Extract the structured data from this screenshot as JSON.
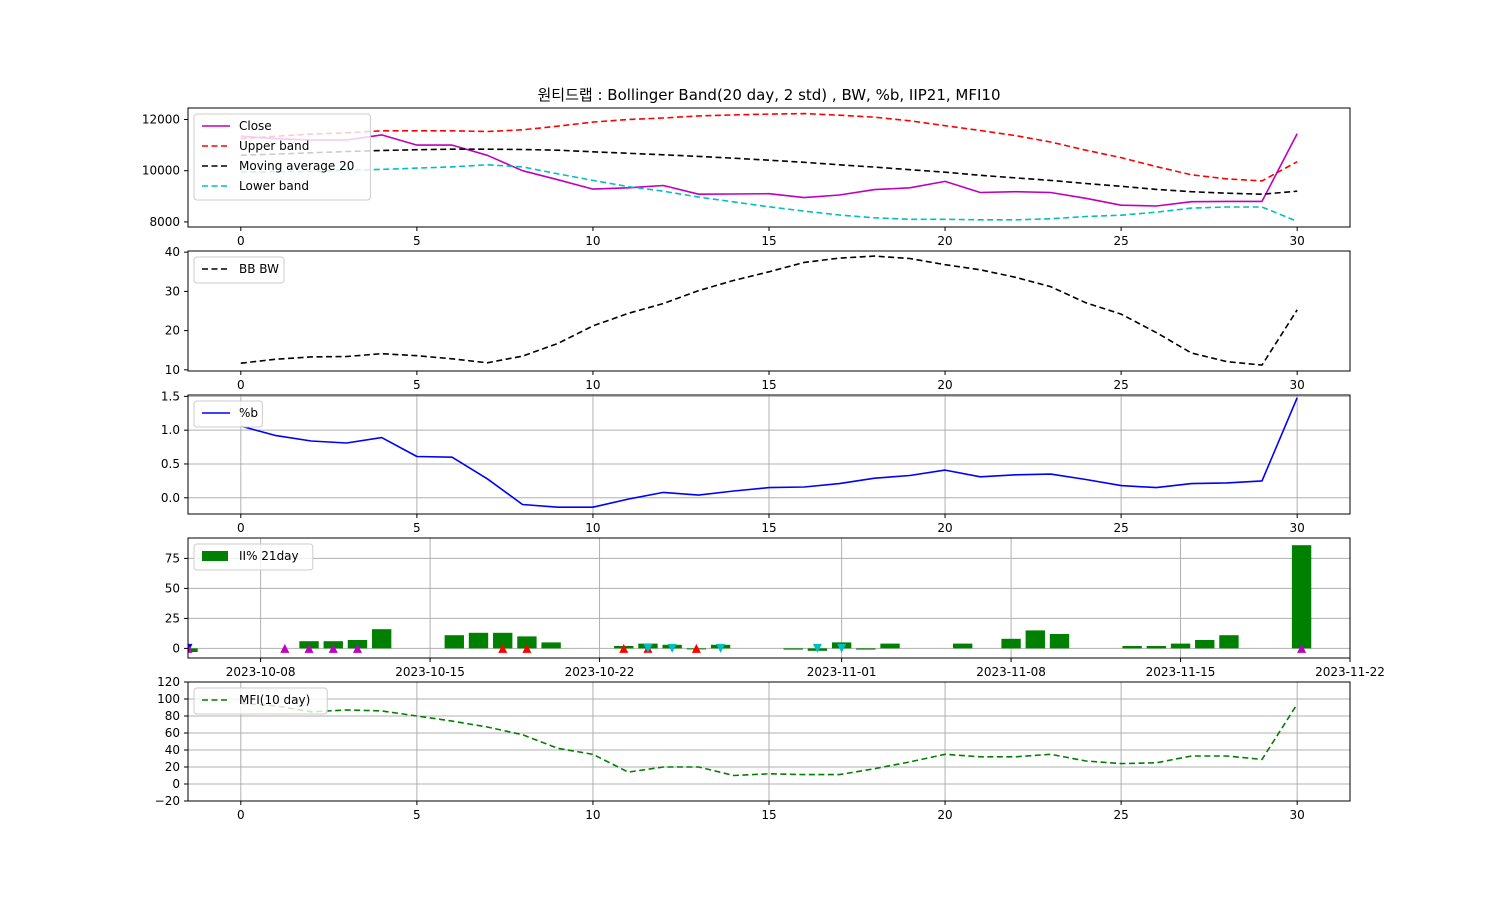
{
  "title": "원티드랩 : Bollinger Band(20 day, 2 std) , BW, %b, IIP21, MFI10",
  "chart_data": [
    {
      "type": "line",
      "x": [
        0,
        1,
        2,
        3,
        4,
        5,
        6,
        7,
        8,
        9,
        10,
        11,
        12,
        13,
        14,
        15,
        16,
        17,
        18,
        19,
        20,
        21,
        22,
        23,
        24,
        25,
        26,
        27,
        28,
        29,
        30
      ],
      "xlim": [
        -1.5,
        31.5
      ],
      "xticks": [
        0,
        5,
        10,
        15,
        20,
        25,
        30
      ],
      "ylim": [
        7800,
        12450
      ],
      "yticks": [
        8000,
        10000,
        12000
      ],
      "grid": false,
      "legend_position": "top-left",
      "series": [
        {
          "name": "Close",
          "color": "#bf00bf",
          "dash": "solid",
          "values": [
            11350,
            11250,
            11200,
            11200,
            11400,
            11000,
            11000,
            10600,
            10000,
            9650,
            9280,
            9330,
            9420,
            9080,
            9090,
            9100,
            8950,
            9050,
            9260,
            9330,
            9580,
            9150,
            9180,
            9150,
            8920,
            8650,
            8620,
            8790,
            8800,
            8800,
            11450
          ]
        },
        {
          "name": "Upper band",
          "color": "#ff0000",
          "dash": "dashed",
          "values": [
            11250,
            11350,
            11430,
            11480,
            11560,
            11560,
            11560,
            11530,
            11600,
            11740,
            11900,
            12000,
            12060,
            12140,
            12180,
            12210,
            12230,
            12170,
            12090,
            11950,
            11760,
            11570,
            11370,
            11120,
            10800,
            10510,
            10160,
            9840,
            9680,
            9600,
            10350
          ]
        },
        {
          "name": "Moving average 20",
          "color": "#000000",
          "dash": "dashed",
          "values": [
            10600,
            10650,
            10700,
            10750,
            10790,
            10820,
            10840,
            10840,
            10830,
            10800,
            10740,
            10680,
            10620,
            10560,
            10490,
            10410,
            10330,
            10230,
            10140,
            10040,
            9940,
            9820,
            9720,
            9620,
            9500,
            9390,
            9270,
            9180,
            9120,
            9080,
            9200
          ]
        },
        {
          "name": "Lower band",
          "color": "#00bfbf",
          "dash": "dashed",
          "values": [
            9950,
            9960,
            9970,
            10020,
            10050,
            10100,
            10150,
            10230,
            10150,
            9880,
            9620,
            9380,
            9200,
            8970,
            8780,
            8590,
            8420,
            8270,
            8160,
            8100,
            8100,
            8080,
            8080,
            8120,
            8210,
            8260,
            8380,
            8540,
            8580,
            8580,
            8020
          ]
        }
      ]
    },
    {
      "type": "line",
      "x": [
        0,
        1,
        2,
        3,
        4,
        5,
        6,
        7,
        8,
        9,
        10,
        11,
        12,
        13,
        14,
        15,
        16,
        17,
        18,
        19,
        20,
        21,
        22,
        23,
        24,
        25,
        26,
        27,
        28,
        29,
        30
      ],
      "xlim": [
        -1.5,
        31.5
      ],
      "xticks": [
        0,
        5,
        10,
        15,
        20,
        25,
        30
      ],
      "ylim": [
        9.7,
        40.3
      ],
      "yticks": [
        10,
        20,
        30,
        40
      ],
      "grid": false,
      "legend_position": "top-left",
      "series": [
        {
          "name": "BB BW",
          "color": "#000000",
          "dash": "dashed",
          "values": [
            11.7,
            12.7,
            13.3,
            13.4,
            14.1,
            13.6,
            12.8,
            11.8,
            13.5,
            16.7,
            21.2,
            24.4,
            26.9,
            30.2,
            32.8,
            35.0,
            37.4,
            38.5,
            39.0,
            38.4,
            36.8,
            35.5,
            33.6,
            31.2,
            27.1,
            24.2,
            19.5,
            14.3,
            12.1,
            11.2,
            25.3
          ]
        }
      ]
    },
    {
      "type": "line",
      "x": [
        0,
        1,
        2,
        3,
        4,
        5,
        6,
        7,
        8,
        9,
        10,
        11,
        12,
        13,
        14,
        15,
        16,
        17,
        18,
        19,
        20,
        21,
        22,
        23,
        24,
        25,
        26,
        27,
        28,
        29,
        30
      ],
      "xlim": [
        -1.5,
        31.5
      ],
      "xticks": [
        0,
        5,
        10,
        15,
        20,
        25,
        30
      ],
      "ylim": [
        -0.24,
        1.52
      ],
      "yticks": [
        0.0,
        0.5,
        1.0,
        1.5
      ],
      "ytick_labels": [
        "0.0",
        "0.5",
        "1.0",
        "1.5"
      ],
      "grid": true,
      "legend_position": "top-left",
      "series": [
        {
          "name": "%b",
          "color": "#0000ff",
          "dash": "solid",
          "values": [
            1.06,
            0.92,
            0.84,
            0.81,
            0.89,
            0.61,
            0.6,
            0.28,
            -0.1,
            -0.14,
            -0.14,
            -0.02,
            0.08,
            0.04,
            0.1,
            0.15,
            0.16,
            0.21,
            0.29,
            0.33,
            0.41,
            0.31,
            0.34,
            0.35,
            0.27,
            0.18,
            0.15,
            0.21,
            0.22,
            0.25,
            1.48
          ]
        }
      ]
    },
    {
      "type": "bar",
      "x_type": "date",
      "xlim": [
        "2023-10-05",
        "2023-11-22"
      ],
      "xticks": [
        "2023-10-08",
        "2023-10-15",
        "2023-10-22",
        "2023-11-01",
        "2023-11-08",
        "2023-11-15",
        "2023-11-22"
      ],
      "ylim": [
        -8,
        92
      ],
      "yticks": [
        0,
        25,
        50,
        75
      ],
      "grid": true,
      "legend_position": "top-left",
      "series": [
        {
          "name": "II% 21day",
          "color": "#008000",
          "dates": [
            "2023-10-05",
            "2023-10-10",
            "2023-10-11",
            "2023-10-12",
            "2023-10-13",
            "2023-10-16",
            "2023-10-17",
            "2023-10-18",
            "2023-10-19",
            "2023-10-20",
            "2023-10-23",
            "2023-10-24",
            "2023-10-25",
            "2023-10-26",
            "2023-10-27",
            "2023-10-30",
            "2023-10-31",
            "2023-11-01",
            "2023-11-02",
            "2023-11-03",
            "2023-11-06",
            "2023-11-08",
            "2023-11-09",
            "2023-11-10",
            "2023-11-13",
            "2023-11-14",
            "2023-11-15",
            "2023-11-16",
            "2023-11-17",
            "2023-11-20"
          ],
          "values": [
            -3,
            6,
            6,
            7,
            16,
            11,
            13,
            13,
            10,
            5,
            2,
            4,
            3,
            0,
            3,
            -1,
            -2,
            5,
            -1,
            4,
            4,
            8,
            15,
            12,
            2,
            2,
            4,
            7,
            11,
            86
          ]
        }
      ],
      "markers": [
        {
          "date": "2023-10-05",
          "shape": "triangle-down",
          "color": "#0000ff"
        },
        {
          "date": "2023-10-05",
          "shape": "triangle-up",
          "color": "#bf00bf"
        },
        {
          "date": "2023-10-09",
          "shape": "triangle-up",
          "color": "#bf00bf"
        },
        {
          "date": "2023-10-10",
          "shape": "triangle-up",
          "color": "#bf00bf"
        },
        {
          "date": "2023-10-11",
          "shape": "triangle-up",
          "color": "#bf00bf"
        },
        {
          "date": "2023-10-12",
          "shape": "triangle-up",
          "color": "#bf00bf"
        },
        {
          "date": "2023-10-18",
          "shape": "triangle-up",
          "color": "#ff0000"
        },
        {
          "date": "2023-10-19",
          "shape": "triangle-up",
          "color": "#ff0000"
        },
        {
          "date": "2023-10-23",
          "shape": "triangle-up",
          "color": "#ff0000"
        },
        {
          "date": "2023-10-24",
          "shape": "triangle-up",
          "color": "#ff0000"
        },
        {
          "date": "2023-10-24",
          "shape": "triangle-down",
          "color": "#00bfbf"
        },
        {
          "date": "2023-10-25",
          "shape": "triangle-down",
          "color": "#00bfbf"
        },
        {
          "date": "2023-10-26",
          "shape": "triangle-up",
          "color": "#ff0000"
        },
        {
          "date": "2023-10-27",
          "shape": "triangle-down",
          "color": "#00bfbf"
        },
        {
          "date": "2023-10-31",
          "shape": "triangle-down",
          "color": "#00bfbf"
        },
        {
          "date": "2023-11-01",
          "shape": "triangle-down",
          "color": "#00bfbf"
        },
        {
          "date": "2023-11-20",
          "shape": "triangle-up",
          "color": "#bf00bf"
        }
      ]
    },
    {
      "type": "line",
      "x": [
        0,
        1,
        2,
        3,
        4,
        5,
        6,
        7,
        8,
        9,
        10,
        11,
        12,
        13,
        14,
        15,
        16,
        17,
        18,
        19,
        20,
        21,
        22,
        23,
        24,
        25,
        26,
        27,
        28,
        29,
        30
      ],
      "xlim": [
        -1.5,
        31.5
      ],
      "xticks": [
        0,
        5,
        10,
        15,
        20,
        25,
        30
      ],
      "ylim": [
        -20,
        120
      ],
      "yticks": [
        -20,
        0,
        20,
        40,
        60,
        80,
        100,
        120
      ],
      "ytick_labels": [
        "−20",
        "0",
        "20",
        "40",
        "60",
        "80",
        "100",
        "120"
      ],
      "grid": true,
      "legend_position": "top-left",
      "series": [
        {
          "name": "MFI(10 day)",
          "color": "#008000",
          "dash": "dashed",
          "values": [
            95,
            92,
            85,
            87,
            86,
            80,
            74,
            67,
            58,
            42,
            35,
            14,
            20,
            20,
            10,
            12,
            11,
            11,
            18,
            26,
            35,
            32,
            32,
            35,
            27,
            24,
            25,
            33,
            33,
            29,
            94
          ]
        }
      ]
    }
  ]
}
